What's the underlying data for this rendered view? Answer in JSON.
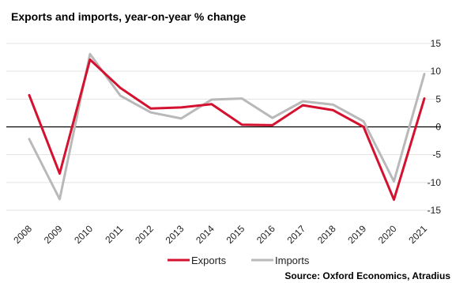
{
  "chart_data": {
    "type": "line",
    "title": "Exports and imports, year-on-year % change",
    "source": "Source: Oxford Economics, Atradius",
    "x": [
      "2008",
      "2009",
      "2010",
      "2011",
      "2012",
      "2013",
      "2014",
      "2015",
      "2016",
      "2017",
      "2018",
      "2019",
      "2020",
      "2021"
    ],
    "ylim": [
      -15,
      15
    ],
    "yticks": [
      15,
      10,
      5,
      0,
      -5,
      -10,
      -15
    ],
    "y_axis_position": "right",
    "grid": "horizontal",
    "legend_position": "bottom",
    "series": [
      {
        "name": "Exports",
        "color": "#d4112f",
        "values": [
          5.7,
          -8.4,
          12.1,
          7.0,
          3.3,
          3.5,
          4.1,
          0.4,
          0.3,
          3.9,
          3.0,
          0.0,
          -13.1,
          5.1
        ]
      },
      {
        "name": "Imports",
        "color": "#b9b9b9",
        "values": [
          -2.2,
          -13.0,
          13.1,
          5.6,
          2.6,
          1.5,
          4.9,
          5.1,
          1.6,
          4.6,
          4.0,
          1.0,
          -9.8,
          9.5
        ]
      }
    ]
  }
}
